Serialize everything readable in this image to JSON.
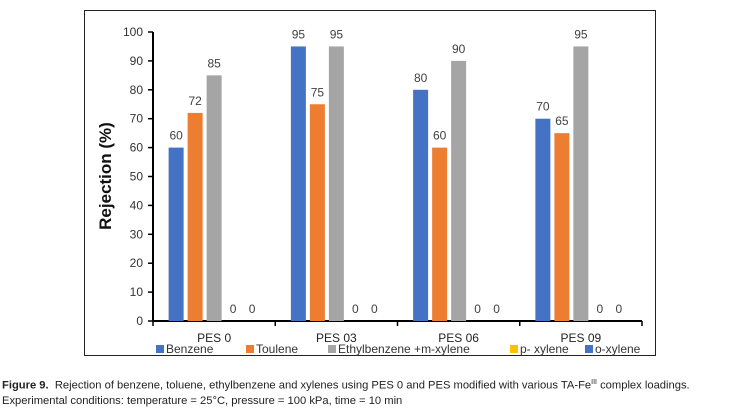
{
  "chart_data": {
    "type": "bar",
    "title": "",
    "xlabel": "",
    "ylabel": "Rejection (%)",
    "ylim": [
      0,
      100
    ],
    "yticks": [
      0,
      10,
      20,
      30,
      40,
      50,
      60,
      70,
      80,
      90,
      100
    ],
    "categories": [
      "PES 0",
      "PES 03",
      "PES 06",
      "PES 09"
    ],
    "series": [
      {
        "name": "Benzene",
        "color": "#4472C4",
        "values": [
          60,
          95,
          80,
          70
        ]
      },
      {
        "name": "Toulene",
        "color": "#ED7D31",
        "values": [
          72,
          75,
          60,
          65
        ]
      },
      {
        "name": "Ethylbenzene +m-xylene",
        "color": "#A5A5A5",
        "values": [
          85,
          95,
          90,
          95
        ]
      },
      {
        "name": "p- xylene",
        "color": "#FFC000",
        "values": [
          0,
          0,
          0,
          0
        ]
      },
      {
        "name": "o-xylene",
        "color": "#4472C4",
        "values": [
          0,
          0,
          0,
          0
        ]
      }
    ],
    "legend_position": "bottom",
    "grid": false,
    "data_labels": true
  },
  "caption": {
    "label": "Figure 9.",
    "text": "Rejection of benzene, toluene, ethylbenzene and xylenes using PES 0 and PES modified with various TA-Fe",
    "superscript": "III",
    "text_after": " complex loadings.",
    "line2": "Experimental conditions: temperature = 25°C, pressure = 100 kPa, time = 10 min"
  }
}
